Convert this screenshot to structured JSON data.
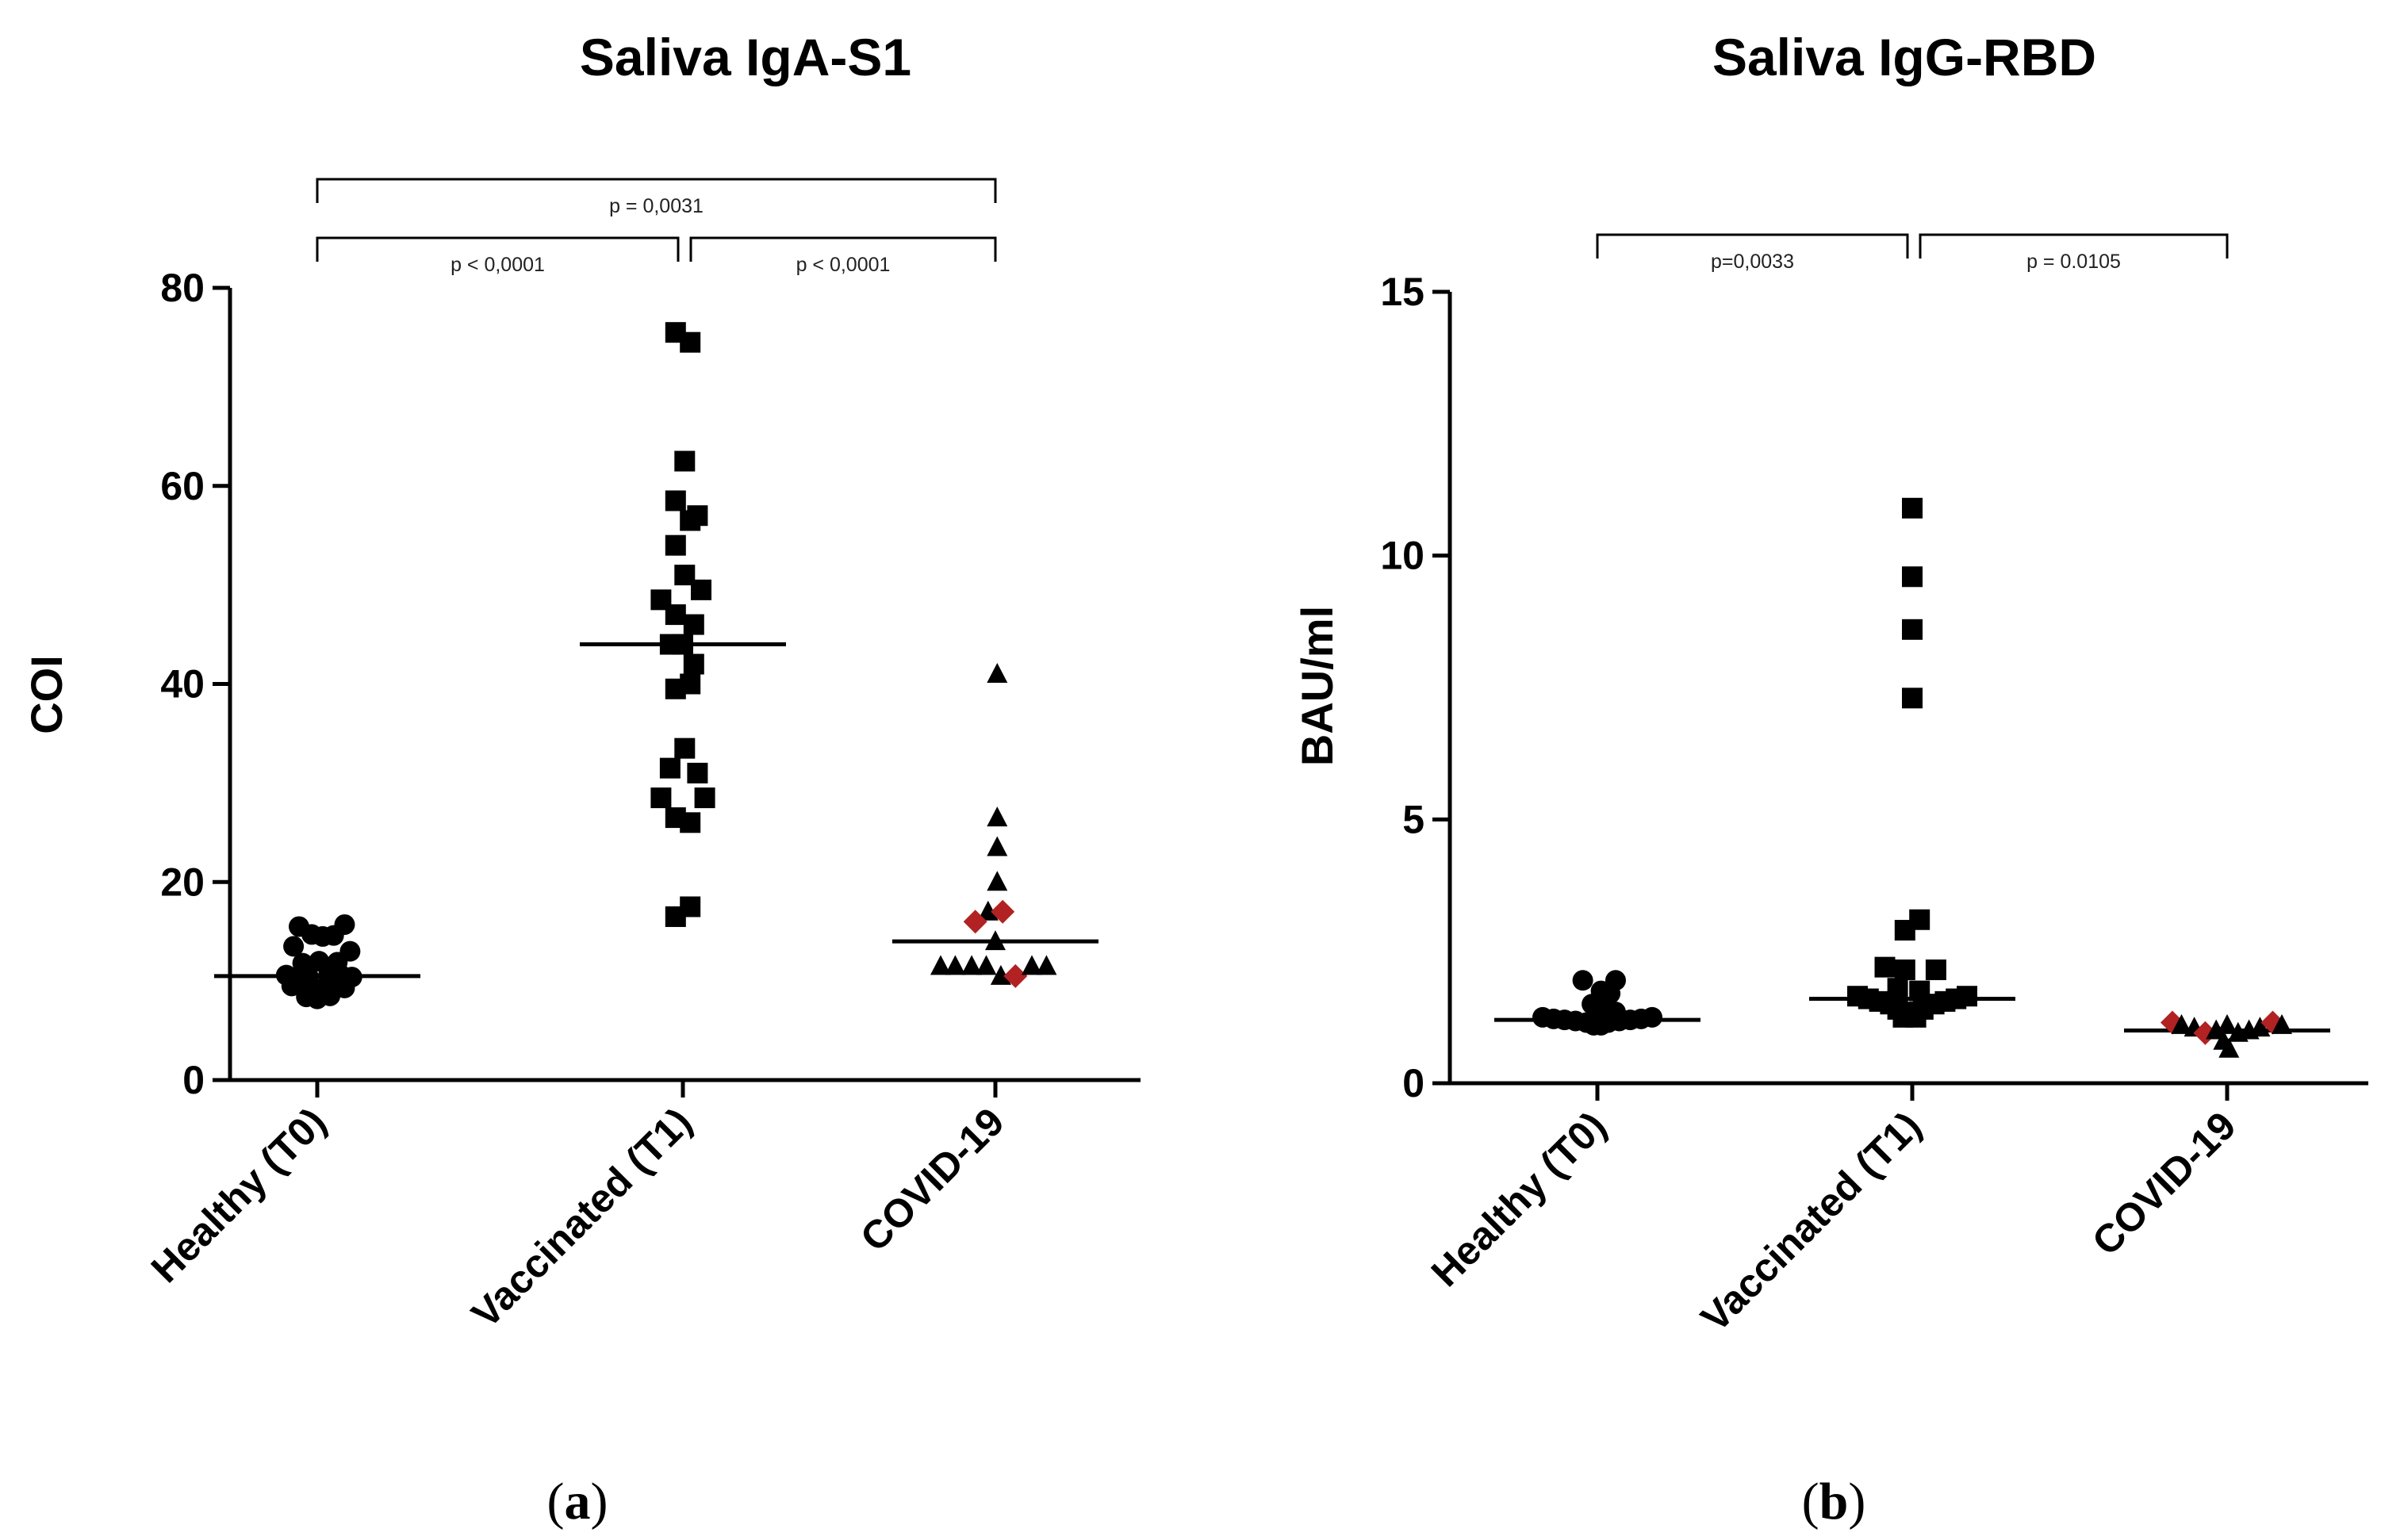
{
  "chart_data": [
    {
      "panel": "(a)",
      "panel_letter": "a",
      "type": "scatter",
      "title": "Saliva IgA-S1",
      "ylabel": "COI",
      "ylim": [
        0,
        80
      ],
      "yticks": [
        0,
        20,
        40,
        60,
        80
      ],
      "categories": [
        "Healthy (T0)",
        "Vaccinated (T1)",
        "COVID-19"
      ],
      "series": [
        {
          "name": "Healthy (T0)",
          "marker": "circle",
          "median": 10.5,
          "points": [
            {
              "y": 15.5,
              "color": "#000000",
              "dx": -0.1
            },
            {
              "y": 14.7,
              "color": "#000000",
              "dx": -0.03
            },
            {
              "y": 14.5,
              "color": "#000000",
              "dx": 0.03
            },
            {
              "y": 14.6,
              "color": "#000000",
              "dx": 0.09
            },
            {
              "y": 15.7,
              "color": "#000000",
              "dx": 0.15
            },
            {
              "y": 13.5,
              "color": "#000000",
              "dx": -0.13
            },
            {
              "y": 13.0,
              "color": "#000000",
              "dx": 0.18
            },
            {
              "y": 11.8,
              "color": "#000000",
              "dx": -0.08
            },
            {
              "y": 12.0,
              "color": "#000000",
              "dx": 0.01
            },
            {
              "y": 11.9,
              "color": "#000000",
              "dx": 0.11
            },
            {
              "y": 10.6,
              "color": "#000000",
              "dx": -0.17
            },
            {
              "y": 10.4,
              "color": "#000000",
              "dx": -0.11
            },
            {
              "y": 10.5,
              "color": "#000000",
              "dx": -0.05
            },
            {
              "y": 10.5,
              "color": "#000000",
              "dx": 0.06
            },
            {
              "y": 10.6,
              "color": "#000000",
              "dx": 0.13
            },
            {
              "y": 10.4,
              "color": "#000000",
              "dx": 0.19
            },
            {
              "y": 9.5,
              "color": "#000000",
              "dx": -0.14
            },
            {
              "y": 9.4,
              "color": "#000000",
              "dx": -0.07
            },
            {
              "y": 9.2,
              "color": "#000000",
              "dx": -0.01
            },
            {
              "y": 9.5,
              "color": "#000000",
              "dx": 0.08
            },
            {
              "y": 9.3,
              "color": "#000000",
              "dx": 0.15
            },
            {
              "y": 8.4,
              "color": "#000000",
              "dx": -0.06
            },
            {
              "y": 8.2,
              "color": "#000000",
              "dx": 0.0
            },
            {
              "y": 8.5,
              "color": "#000000",
              "dx": 0.07
            }
          ]
        },
        {
          "name": "Vaccinated (T1)",
          "marker": "square",
          "median": 44,
          "points": [
            {
              "y": 75.5,
              "color": "#000000",
              "dx": -0.04
            },
            {
              "y": 74.5,
              "color": "#000000",
              "dx": 0.04
            },
            {
              "y": 62.5,
              "color": "#000000",
              "dx": 0.01
            },
            {
              "y": 58.5,
              "color": "#000000",
              "dx": -0.04
            },
            {
              "y": 56.5,
              "color": "#000000",
              "dx": 0.04
            },
            {
              "y": 57.0,
              "color": "#000000",
              "dx": 0.08
            },
            {
              "y": 54.0,
              "color": "#000000",
              "dx": -0.04
            },
            {
              "y": 51.0,
              "color": "#000000",
              "dx": 0.01
            },
            {
              "y": 49.5,
              "color": "#000000",
              "dx": 0.1
            },
            {
              "y": 48.5,
              "color": "#000000",
              "dx": -0.12
            },
            {
              "y": 47.0,
              "color": "#000000",
              "dx": -0.04
            },
            {
              "y": 46.0,
              "color": "#000000",
              "dx": 0.06
            },
            {
              "y": 44.0,
              "color": "#000000",
              "dx": -0.07
            },
            {
              "y": 44.0,
              "color": "#000000",
              "dx": 0.0
            },
            {
              "y": 42.0,
              "color": "#000000",
              "dx": 0.06
            },
            {
              "y": 39.5,
              "color": "#000000",
              "dx": -0.04
            },
            {
              "y": 40.0,
              "color": "#000000",
              "dx": 0.04
            },
            {
              "y": 33.5,
              "color": "#000000",
              "dx": 0.01
            },
            {
              "y": 31.5,
              "color": "#000000",
              "dx": -0.07
            },
            {
              "y": 31.0,
              "color": "#000000",
              "dx": 0.08
            },
            {
              "y": 28.5,
              "color": "#000000",
              "dx": -0.12
            },
            {
              "y": 28.5,
              "color": "#000000",
              "dx": 0.12
            },
            {
              "y": 26.5,
              "color": "#000000",
              "dx": -0.04
            },
            {
              "y": 26.0,
              "color": "#000000",
              "dx": 0.04
            },
            {
              "y": 17.5,
              "color": "#000000",
              "dx": 0.04
            },
            {
              "y": 16.5,
              "color": "#000000",
              "dx": -0.04
            }
          ]
        },
        {
          "name": "COVID-19",
          "marker": "triangle",
          "median": 14,
          "points": [
            {
              "y": 41.0,
              "color": "#000000",
              "dx": 0.01,
              "marker": "triangle"
            },
            {
              "y": 26.5,
              "color": "#000000",
              "dx": 0.01,
              "marker": "triangle"
            },
            {
              "y": 23.5,
              "color": "#000000",
              "dx": 0.01,
              "marker": "triangle"
            },
            {
              "y": 20.0,
              "color": "#000000",
              "dx": 0.01,
              "marker": "triangle"
            },
            {
              "y": 17.0,
              "color": "#000000",
              "dx": -0.04,
              "marker": "triangle"
            },
            {
              "y": 16.0,
              "color": "#b22222",
              "dx": -0.11,
              "marker": "diamond"
            },
            {
              "y": 17.0,
              "color": "#b22222",
              "dx": 0.04,
              "marker": "diamond"
            },
            {
              "y": 14.0,
              "color": "#000000",
              "dx": 0.0,
              "marker": "triangle"
            },
            {
              "y": 11.5,
              "color": "#000000",
              "dx": -0.3,
              "marker": "triangle"
            },
            {
              "y": 11.5,
              "color": "#000000",
              "dx": -0.22,
              "marker": "triangle"
            },
            {
              "y": 11.5,
              "color": "#000000",
              "dx": -0.13,
              "marker": "triangle"
            },
            {
              "y": 11.5,
              "color": "#000000",
              "dx": -0.05,
              "marker": "triangle"
            },
            {
              "y": 10.5,
              "color": "#000000",
              "dx": 0.03,
              "marker": "triangle"
            },
            {
              "y": 10.5,
              "color": "#b22222",
              "dx": 0.11,
              "marker": "diamond"
            },
            {
              "y": 11.5,
              "color": "#000000",
              "dx": 0.2,
              "marker": "triangle"
            },
            {
              "y": 11.5,
              "color": "#000000",
              "dx": 0.28,
              "marker": "triangle"
            }
          ]
        }
      ],
      "comparisons": [
        {
          "from": 0,
          "to": 2,
          "level": 2,
          "label": "p = 0,0031"
        },
        {
          "from": 0,
          "to": 1,
          "level": 1,
          "label": "p < 0,0001"
        },
        {
          "from": 1,
          "to": 2,
          "level": 1,
          "label": "p < 0,0001"
        }
      ]
    },
    {
      "panel": "(b)",
      "panel_letter": "b",
      "type": "scatter",
      "title": "Saliva IgG-RBD",
      "ylabel": "BAU/ml",
      "ylim": [
        0,
        15
      ],
      "yticks": [
        0,
        5,
        10,
        15
      ],
      "categories": [
        "Healthy (T0)",
        "Vaccinated (T1)",
        "COVID-19"
      ],
      "series": [
        {
          "name": "Healthy (T0)",
          "marker": "circle",
          "median": 1.2,
          "points": [
            {
              "y": 1.95,
              "color": "#000000",
              "dx": -0.08
            },
            {
              "y": 1.95,
              "color": "#000000",
              "dx": 0.1
            },
            {
              "y": 1.75,
              "color": "#000000",
              "dx": 0.02
            },
            {
              "y": 1.7,
              "color": "#000000",
              "dx": 0.07
            },
            {
              "y": 1.5,
              "color": "#000000",
              "dx": -0.03
            },
            {
              "y": 1.5,
              "color": "#000000",
              "dx": 0.04
            },
            {
              "y": 1.35,
              "color": "#000000",
              "dx": 0.1
            },
            {
              "y": 1.3,
              "color": "#000000",
              "dx": 0.0
            },
            {
              "y": 1.25,
              "color": "#000000",
              "dx": -0.3
            },
            {
              "y": 1.22,
              "color": "#000000",
              "dx": -0.24
            },
            {
              "y": 1.2,
              "color": "#000000",
              "dx": -0.18
            },
            {
              "y": 1.18,
              "color": "#000000",
              "dx": -0.12
            },
            {
              "y": 1.15,
              "color": "#000000",
              "dx": -0.06
            },
            {
              "y": 1.15,
              "color": "#000000",
              "dx": 0.06
            },
            {
              "y": 1.18,
              "color": "#000000",
              "dx": 0.12
            },
            {
              "y": 1.2,
              "color": "#000000",
              "dx": 0.18
            },
            {
              "y": 1.22,
              "color": "#000000",
              "dx": 0.24
            },
            {
              "y": 1.25,
              "color": "#000000",
              "dx": 0.3
            },
            {
              "y": 1.1,
              "color": "#000000",
              "dx": -0.02
            },
            {
              "y": 1.1,
              "color": "#000000",
              "dx": 0.02
            }
          ]
        },
        {
          "name": "Vaccinated (T1)",
          "marker": "square",
          "median": 1.6,
          "points": [
            {
              "y": 10.9,
              "color": "#000000",
              "dx": 0.0
            },
            {
              "y": 9.6,
              "color": "#000000",
              "dx": 0.0
            },
            {
              "y": 8.6,
              "color": "#000000",
              "dx": 0.0
            },
            {
              "y": 7.3,
              "color": "#000000",
              "dx": 0.0
            },
            {
              "y": 3.1,
              "color": "#000000",
              "dx": 0.04
            },
            {
              "y": 2.9,
              "color": "#000000",
              "dx": -0.04
            },
            {
              "y": 2.2,
              "color": "#000000",
              "dx": -0.15
            },
            {
              "y": 2.15,
              "color": "#000000",
              "dx": -0.04
            },
            {
              "y": 2.15,
              "color": "#000000",
              "dx": 0.13
            },
            {
              "y": 1.8,
              "color": "#000000",
              "dx": -0.08
            },
            {
              "y": 1.75,
              "color": "#000000",
              "dx": 0.04
            },
            {
              "y": 1.65,
              "color": "#000000",
              "dx": -0.3
            },
            {
              "y": 1.6,
              "color": "#000000",
              "dx": -0.24
            },
            {
              "y": 1.55,
              "color": "#000000",
              "dx": -0.18
            },
            {
              "y": 1.5,
              "color": "#000000",
              "dx": -0.12
            },
            {
              "y": 1.5,
              "color": "#000000",
              "dx": 0.12
            },
            {
              "y": 1.55,
              "color": "#000000",
              "dx": 0.18
            },
            {
              "y": 1.6,
              "color": "#000000",
              "dx": 0.24
            },
            {
              "y": 1.65,
              "color": "#000000",
              "dx": 0.3
            },
            {
              "y": 1.4,
              "color": "#000000",
              "dx": -0.08
            },
            {
              "y": 1.35,
              "color": "#000000",
              "dx": -0.02
            },
            {
              "y": 1.4,
              "color": "#000000",
              "dx": 0.06
            },
            {
              "y": 1.25,
              "color": "#000000",
              "dx": -0.05
            },
            {
              "y": 1.25,
              "color": "#000000",
              "dx": 0.02
            }
          ]
        },
        {
          "name": "COVID-19",
          "marker": "triangle",
          "median": 1.0,
          "points": [
            {
              "y": 1.15,
              "color": "#b22222",
              "dx": -0.3,
              "marker": "diamond"
            },
            {
              "y": 1.1,
              "color": "#000000",
              "dx": -0.25,
              "marker": "triangle"
            },
            {
              "y": 1.05,
              "color": "#000000",
              "dx": -0.18,
              "marker": "triangle"
            },
            {
              "y": 0.95,
              "color": "#b22222",
              "dx": -0.12,
              "marker": "diamond"
            },
            {
              "y": 1.0,
              "color": "#000000",
              "dx": -0.06,
              "marker": "triangle"
            },
            {
              "y": 1.1,
              "color": "#000000",
              "dx": 0.0,
              "marker": "triangle"
            },
            {
              "y": 0.8,
              "color": "#000000",
              "dx": -0.02,
              "marker": "triangle"
            },
            {
              "y": 0.65,
              "color": "#000000",
              "dx": 0.01,
              "marker": "triangle"
            },
            {
              "y": 0.95,
              "color": "#000000",
              "dx": 0.06,
              "marker": "triangle"
            },
            {
              "y": 1.0,
              "color": "#000000",
              "dx": 0.12,
              "marker": "triangle"
            },
            {
              "y": 1.05,
              "color": "#000000",
              "dx": 0.18,
              "marker": "triangle"
            },
            {
              "y": 1.15,
              "color": "#b22222",
              "dx": 0.25,
              "marker": "diamond"
            },
            {
              "y": 1.1,
              "color": "#000000",
              "dx": 0.3,
              "marker": "triangle"
            }
          ]
        }
      ],
      "comparisons": [
        {
          "from": 0,
          "to": 1,
          "level": 1,
          "label": "p=0,0033"
        },
        {
          "from": 1,
          "to": 2,
          "level": 1,
          "label": "p = 0.0105"
        }
      ]
    }
  ]
}
